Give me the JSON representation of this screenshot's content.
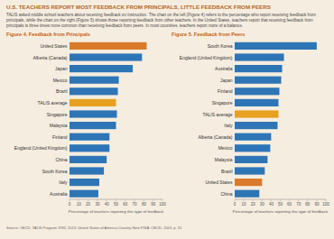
{
  "title": "U.S. TEACHERS REPORT MOST FEEDBACK FROM PRINCIPALS, LITTLE FEEDBACK FROM PEERS",
  "subtitle": "TALIS asked middle school teachers about receiving feedback on instruction. The chart on the left (Figure 4) refers to the percentage who report receiving feedback from principals, while the chart on the right (Figure 5) shows those reporting feedback from other teachers. In the United States, teachers report that receiving feedback from principals is three times more common than receiving feedback from peers. In most countries, teachers report more of a balance.",
  "annotations": [
    "Source: OECD, TALIS Program 1992, 2013; United States of America Country Note PISA: OECD, 2013; p. 31"
  ],
  "chart_data": [
    {
      "type": "bar",
      "orientation": "horizontal",
      "title": "Figure 4. Feedback from Principals",
      "xlabel": "Percentage of teachers reporting this type of feedback",
      "categories": [
        "United States",
        "Alberta (Canada)",
        "Japan",
        "Mexico",
        "Brazil",
        "TALIS average",
        "Singapore",
        "Malaysia",
        "Finland",
        "England (United Kingdom)",
        "China",
        "South Korea",
        "Italy",
        "Australia"
      ],
      "values": [
        83,
        78,
        68,
        53,
        52,
        50,
        51,
        50,
        43,
        43,
        40,
        37,
        32,
        31
      ],
      "colors": [
        "#d97b2a",
        "#2e75b6",
        "#2e75b6",
        "#2e75b6",
        "#2e75b6",
        "#e8a020",
        "#2e75b6",
        "#2e75b6",
        "#2e75b6",
        "#2e75b6",
        "#2e75b6",
        "#2e75b6",
        "#2e75b6",
        "#2e75b6"
      ],
      "xlim": [
        0,
        100
      ],
      "xticks": [
        0,
        10,
        20,
        30,
        40,
        50,
        60,
        70,
        80,
        90,
        100
      ],
      "grid": false
    },
    {
      "type": "bar",
      "orientation": "horizontal",
      "title": "Figure 5. Feedback from Peers",
      "xlabel": "Percentage of teachers reporting this type of feedback",
      "categories": [
        "South Korea",
        "England (United Kingdom)",
        "Australia",
        "Japan",
        "Finland",
        "Singapore",
        "TALIS average",
        "Italy",
        "Alberta (Canada)",
        "Mexico",
        "Malaysia",
        "Brazil",
        "United States",
        "China"
      ],
      "values": [
        90,
        54,
        52,
        51,
        49,
        48,
        48,
        47,
        40,
        39,
        36,
        33,
        30,
        27
      ],
      "colors": [
        "#2e75b6",
        "#2e75b6",
        "#2e75b6",
        "#2e75b6",
        "#2e75b6",
        "#2e75b6",
        "#e8a020",
        "#2e75b6",
        "#2e75b6",
        "#2e75b6",
        "#2e75b6",
        "#2e75b6",
        "#d97b2a",
        "#2e75b6"
      ],
      "xlim": [
        0,
        100
      ],
      "xticks": [
        0,
        10,
        20,
        30,
        40,
        50,
        60,
        70,
        80,
        90,
        100
      ],
      "grid": false
    }
  ]
}
